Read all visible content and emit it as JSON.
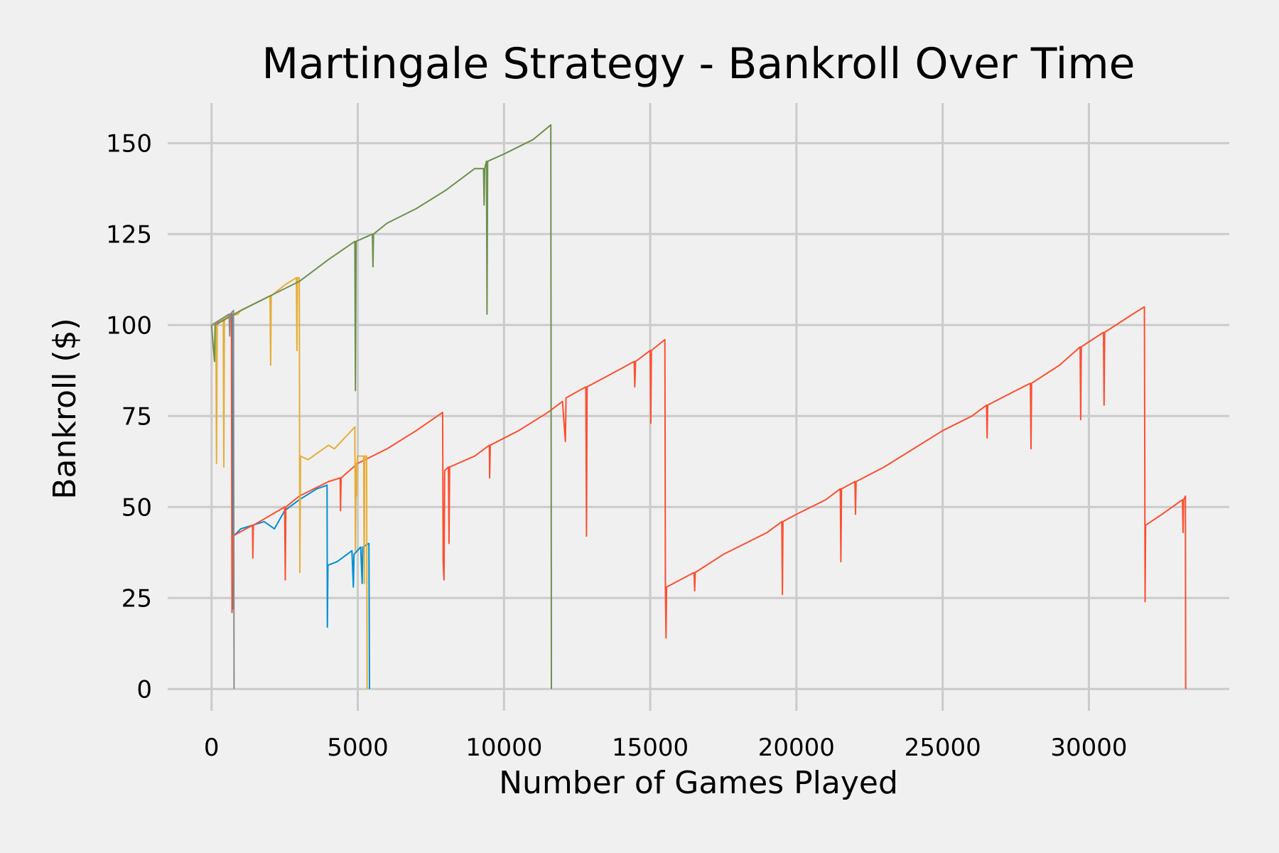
{
  "chart_data": {
    "type": "line",
    "title": "Martingale Strategy - Bankroll Over Time",
    "xlabel": "Number of Games Played",
    "ylabel": "Bankroll ($)",
    "xlim": [
      -1500,
      34800
    ],
    "ylim": [
      -6,
      161
    ],
    "xticks": [
      0,
      5000,
      10000,
      15000,
      20000,
      25000,
      30000
    ],
    "yticks": [
      0,
      25,
      50,
      75,
      100,
      125,
      150
    ],
    "grid": true,
    "legend": "none",
    "series": [
      {
        "color": "#008fd5",
        "points": [
          [
            0,
            100
          ],
          [
            700,
            103
          ],
          [
            730,
            22
          ],
          [
            750,
            42
          ],
          [
            1000,
            44
          ],
          [
            1800,
            46
          ],
          [
            2150,
            44
          ],
          [
            2500,
            49
          ],
          [
            3000,
            52
          ],
          [
            3400,
            54
          ],
          [
            3600,
            55
          ],
          [
            3950,
            56
          ],
          [
            3960,
            17
          ],
          [
            3980,
            34
          ],
          [
            4300,
            35
          ],
          [
            4800,
            38
          ],
          [
            4850,
            28
          ],
          [
            4870,
            37
          ],
          [
            5100,
            39
          ],
          [
            5150,
            29
          ],
          [
            5170,
            39
          ],
          [
            5380,
            40
          ],
          [
            5400,
            0
          ]
        ]
      },
      {
        "color": "#fc4f30",
        "points": [
          [
            0,
            100
          ],
          [
            680,
            103
          ],
          [
            700,
            21
          ],
          [
            720,
            42
          ],
          [
            1400,
            45
          ],
          [
            1410,
            36
          ],
          [
            1430,
            45
          ],
          [
            2500,
            50
          ],
          [
            2520,
            30
          ],
          [
            2540,
            50
          ],
          [
            3000,
            53
          ],
          [
            4000,
            57
          ],
          [
            4400,
            58
          ],
          [
            4410,
            49
          ],
          [
            4430,
            58
          ],
          [
            5000,
            62
          ],
          [
            6000,
            66
          ],
          [
            7000,
            71
          ],
          [
            7900,
            76
          ],
          [
            7920,
            35
          ],
          [
            7950,
            30
          ],
          [
            7970,
            60
          ],
          [
            8100,
            61
          ],
          [
            8120,
            40
          ],
          [
            8140,
            61
          ],
          [
            9000,
            64
          ],
          [
            9500,
            67
          ],
          [
            9510,
            58
          ],
          [
            9530,
            67
          ],
          [
            10500,
            71
          ],
          [
            11500,
            76
          ],
          [
            12000,
            79
          ],
          [
            12100,
            68
          ],
          [
            12120,
            80
          ],
          [
            12800,
            83
          ],
          [
            12820,
            42
          ],
          [
            12840,
            83
          ],
          [
            14000,
            88
          ],
          [
            14450,
            90
          ],
          [
            14470,
            83
          ],
          [
            14500,
            90
          ],
          [
            15000,
            93
          ],
          [
            15020,
            73
          ],
          [
            15040,
            93
          ],
          [
            15500,
            96
          ],
          [
            15520,
            27
          ],
          [
            15540,
            14
          ],
          [
            15560,
            28
          ],
          [
            16500,
            32
          ],
          [
            16520,
            27
          ],
          [
            16540,
            32
          ],
          [
            17500,
            37
          ],
          [
            18500,
            41
          ],
          [
            19000,
            43
          ],
          [
            19500,
            46
          ],
          [
            19520,
            26
          ],
          [
            19540,
            46
          ],
          [
            20000,
            48
          ],
          [
            21000,
            52
          ],
          [
            21500,
            55
          ],
          [
            21520,
            35
          ],
          [
            21540,
            55
          ],
          [
            22000,
            57
          ],
          [
            22020,
            48
          ],
          [
            22040,
            57
          ],
          [
            23000,
            61
          ],
          [
            24000,
            66
          ],
          [
            25000,
            71
          ],
          [
            26000,
            75
          ],
          [
            26500,
            78
          ],
          [
            26520,
            69
          ],
          [
            26540,
            78
          ],
          [
            27500,
            82
          ],
          [
            28000,
            84
          ],
          [
            28020,
            66
          ],
          [
            28040,
            84
          ],
          [
            29000,
            89
          ],
          [
            29700,
            94
          ],
          [
            29720,
            74
          ],
          [
            29740,
            94
          ],
          [
            30500,
            98
          ],
          [
            30520,
            78
          ],
          [
            30540,
            98
          ],
          [
            31500,
            103
          ],
          [
            31900,
            105
          ],
          [
            31920,
            24
          ],
          [
            31940,
            45
          ],
          [
            32500,
            48
          ],
          [
            33200,
            52
          ],
          [
            33220,
            43
          ],
          [
            33240,
            52
          ],
          [
            33300,
            53
          ],
          [
            33310,
            0
          ]
        ]
      },
      {
        "color": "#e5ae38",
        "points": [
          [
            0,
            100
          ],
          [
            150,
            100
          ],
          [
            170,
            62
          ],
          [
            190,
            100
          ],
          [
            400,
            102
          ],
          [
            420,
            61
          ],
          [
            440,
            102
          ],
          [
            900,
            103
          ],
          [
            1000,
            104
          ],
          [
            2000,
            108
          ],
          [
            2020,
            89
          ],
          [
            2040,
            108
          ],
          [
            2500,
            111
          ],
          [
            2900,
            113
          ],
          [
            2920,
            93
          ],
          [
            2940,
            113
          ],
          [
            3000,
            113
          ],
          [
            3020,
            32
          ],
          [
            3040,
            64
          ],
          [
            3300,
            63
          ],
          [
            4000,
            67
          ],
          [
            4200,
            66
          ],
          [
            4900,
            72
          ],
          [
            4920,
            38
          ],
          [
            4940,
            62
          ],
          [
            4960,
            53
          ],
          [
            4980,
            63
          ],
          [
            5000,
            64
          ],
          [
            5200,
            64
          ],
          [
            5220,
            29
          ],
          [
            5240,
            64
          ],
          [
            5300,
            64
          ],
          [
            5320,
            0
          ]
        ]
      },
      {
        "color": "#6d904f",
        "points": [
          [
            0,
            100
          ],
          [
            100,
            90
          ],
          [
            120,
            100
          ],
          [
            1000,
            104
          ],
          [
            2000,
            108
          ],
          [
            3000,
            112
          ],
          [
            4000,
            118
          ],
          [
            4900,
            123
          ],
          [
            4920,
            82
          ],
          [
            4940,
            123
          ],
          [
            5500,
            125
          ],
          [
            5520,
            116
          ],
          [
            5540,
            125
          ],
          [
            6000,
            128
          ],
          [
            7000,
            132
          ],
          [
            8000,
            137
          ],
          [
            9000,
            143
          ],
          [
            9300,
            143
          ],
          [
            9320,
            133
          ],
          [
            9340,
            143
          ],
          [
            9400,
            145
          ],
          [
            9420,
            103
          ],
          [
            9440,
            145
          ],
          [
            10000,
            147
          ],
          [
            11000,
            151
          ],
          [
            11600,
            155
          ],
          [
            11620,
            0
          ]
        ]
      },
      {
        "color": "#8b8b8b",
        "points": [
          [
            0,
            100
          ],
          [
            600,
            103
          ],
          [
            620,
            97
          ],
          [
            640,
            103
          ],
          [
            750,
            104
          ],
          [
            770,
            0
          ]
        ]
      }
    ]
  }
}
